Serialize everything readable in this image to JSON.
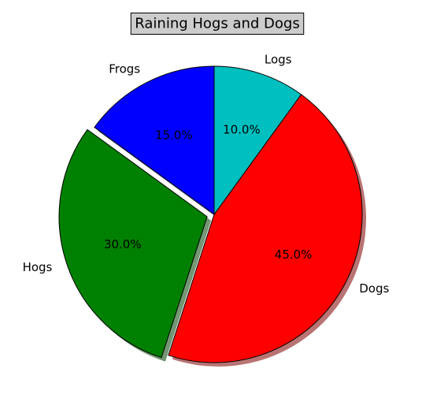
{
  "chart_data": {
    "type": "pie",
    "title": "Raining Hogs and Dogs",
    "title_box": true,
    "start_angle_deg": 90,
    "direction": "counterclockwise",
    "legend": "none",
    "shadow": true,
    "autopct_format": "1 decimal place percent",
    "slices": [
      {
        "label": "Frogs",
        "value": 15,
        "pct_label": "15.0%",
        "color": "#0000ff",
        "explode": 0
      },
      {
        "label": "Hogs",
        "value": 30,
        "pct_label": "30.0%",
        "color": "#008000",
        "explode": 0.05
      },
      {
        "label": "Dogs",
        "value": 45,
        "pct_label": "45.0%",
        "color": "#ff0000",
        "explode": 0
      },
      {
        "label": "Logs",
        "value": 10,
        "pct_label": "10.0%",
        "color": "#00bfbf",
        "explode": 0
      }
    ]
  }
}
